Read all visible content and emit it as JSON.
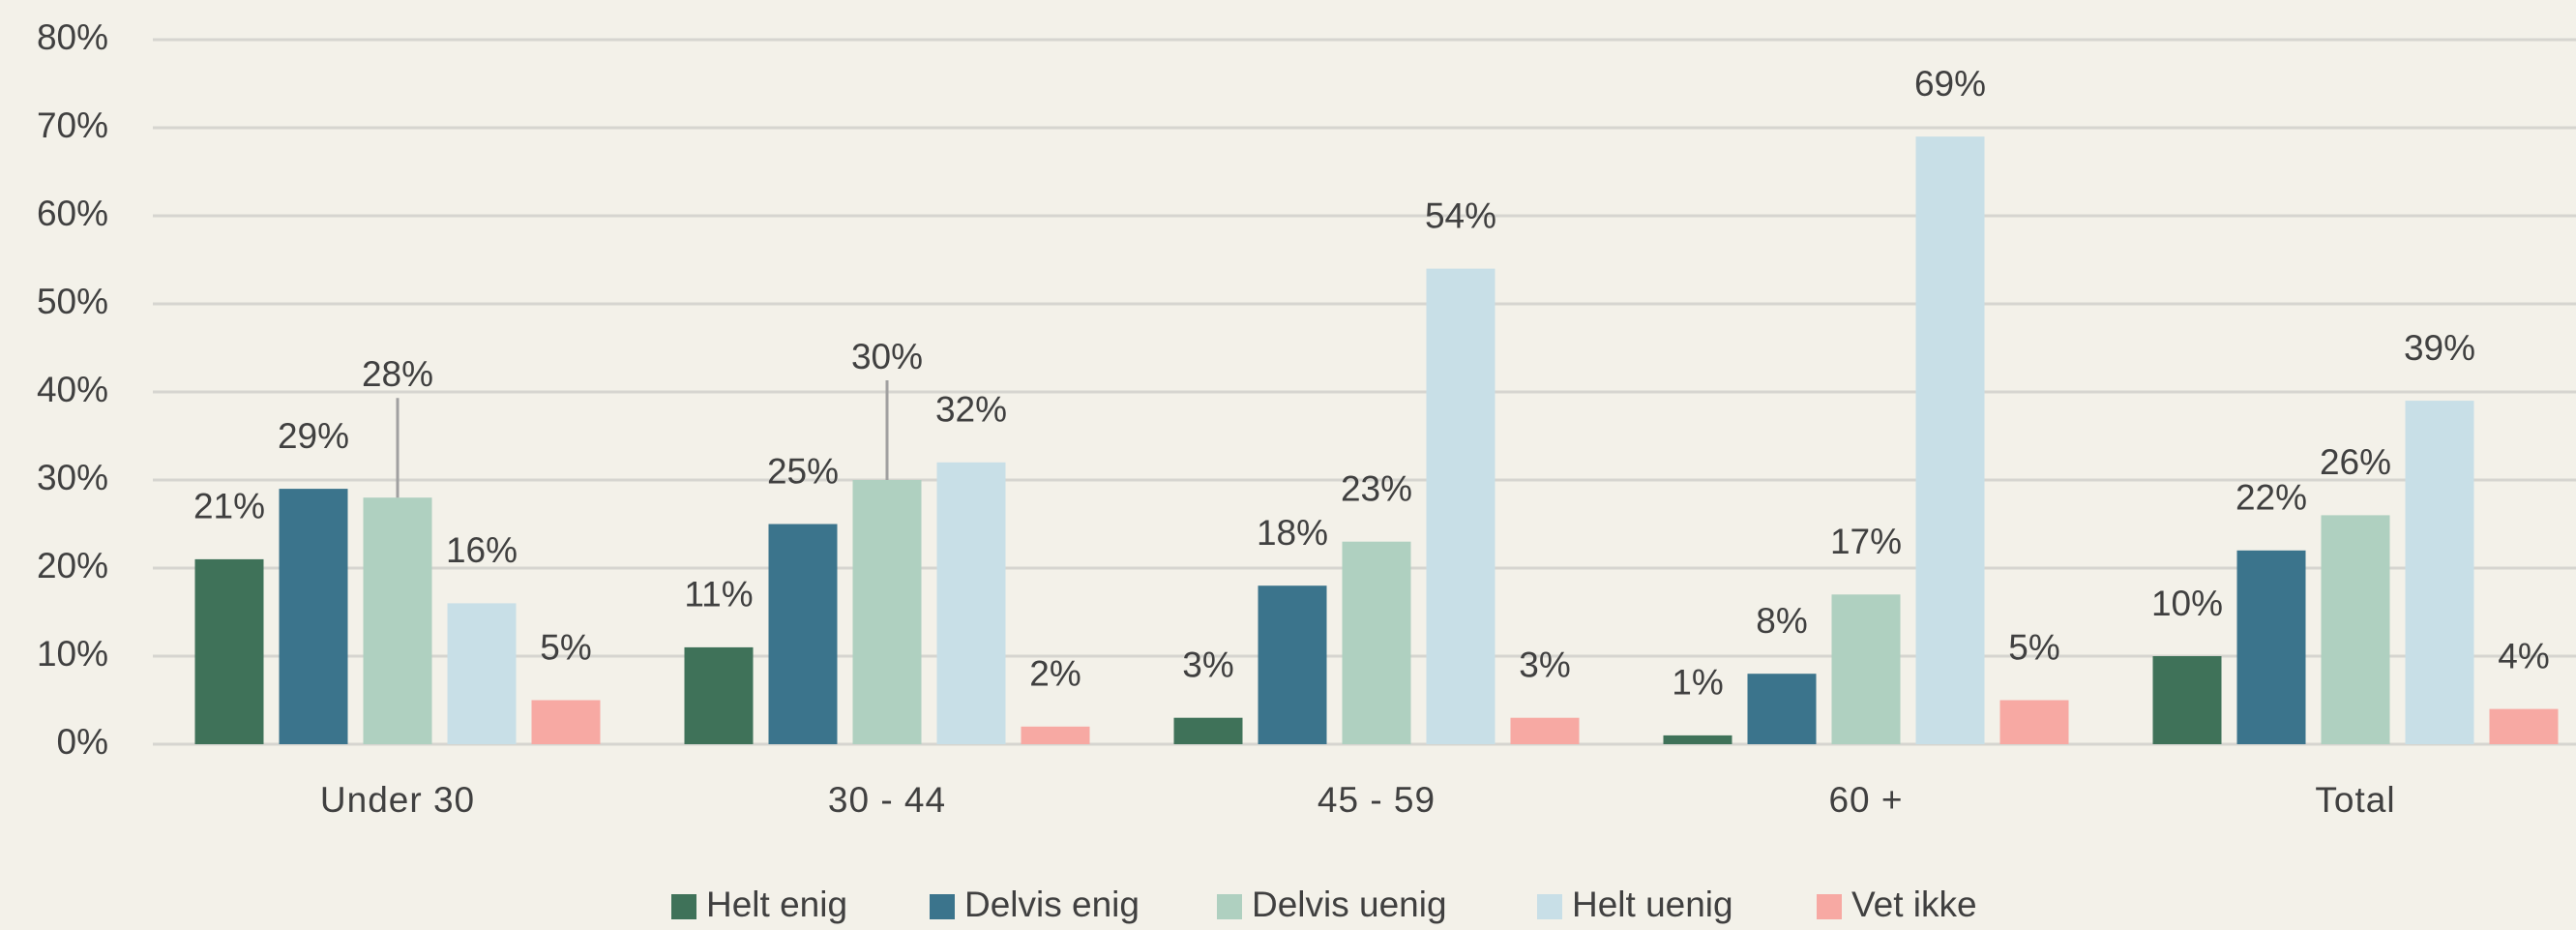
{
  "chart_data": {
    "type": "bar",
    "categories": [
      "Under 30",
      "30 - 44",
      "45 - 59",
      "60 +",
      "Total"
    ],
    "series": [
      {
        "name": "Helt enig",
        "color": "#3f7259",
        "values": [
          21,
          11,
          3,
          1,
          10
        ],
        "value_labels": [
          "21%",
          "11%",
          "3%",
          "1%",
          "10%"
        ]
      },
      {
        "name": "Delvis enig",
        "color": "#3b748c",
        "values": [
          29,
          25,
          18,
          8,
          22
        ],
        "value_labels": [
          "29%",
          "25%",
          "18%",
          "8%",
          "22%"
        ]
      },
      {
        "name": "Delvis uenig",
        "color": "#afd0c0",
        "values": [
          28,
          30,
          23,
          17,
          26
        ],
        "value_labels": [
          "28%",
          "30%",
          "23%",
          "17%",
          "26%"
        ]
      },
      {
        "name": "Helt uenig",
        "color": "#c8dfe7",
        "values": [
          16,
          32,
          54,
          69,
          39
        ],
        "value_labels": [
          "16%",
          "32%",
          "54%",
          "69%",
          "39%"
        ]
      },
      {
        "name": "Vet ikke",
        "color": "#f7a9a3",
        "values": [
          5,
          2,
          3,
          5,
          4
        ],
        "value_labels": [
          "5%",
          "2%",
          "3%",
          "5%",
          "4%"
        ]
      }
    ],
    "ylim": [
      0,
      80
    ],
    "yticks": [
      {
        "value": 0,
        "label": "0%"
      },
      {
        "value": 10,
        "label": "10%"
      },
      {
        "value": 20,
        "label": "20%"
      },
      {
        "value": 30,
        "label": "30%"
      },
      {
        "value": 40,
        "label": "40%"
      },
      {
        "value": 50,
        "label": "50%"
      },
      {
        "value": 60,
        "label": "60%"
      },
      {
        "value": 70,
        "label": "70%"
      },
      {
        "value": 80,
        "label": "80%"
      }
    ],
    "grid": true,
    "legend": "bottom"
  }
}
